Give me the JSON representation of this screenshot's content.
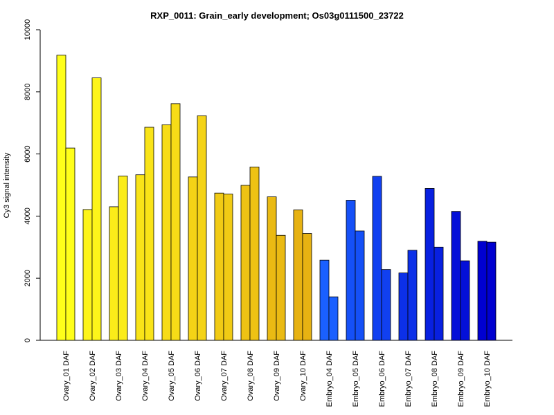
{
  "chart_data": {
    "type": "bar",
    "title": "RXP_0011: Grain_early development; Os03g0111500_23722",
    "xlabel": "",
    "ylabel": "Cy3 signal intensity",
    "ylim": [
      0,
      10000
    ],
    "yticks": [
      0,
      2000,
      4000,
      6000,
      8000,
      10000
    ],
    "grid": false,
    "bars_per_category": 2,
    "categories": [
      "Ovary_01 DAF",
      "Ovary_02 DAF",
      "Ovary_03 DAF",
      "Ovary_04 DAF",
      "Ovary_05 DAF",
      "Ovary_06 DAF",
      "Ovary_07 DAF",
      "Ovary_08 DAF",
      "Ovary_09 DAF",
      "Ovary_10 DAF",
      "Embryo_04 DAF",
      "Embryo_05 DAF",
      "Embryo_06 DAF",
      "Embryo_07 DAF",
      "Embryo_08 DAF",
      "Embryo_09 DAF",
      "Embryo_10 DAF"
    ],
    "values": [
      [
        9180,
        6190
      ],
      [
        4210,
        8450
      ],
      [
        4300,
        5290
      ],
      [
        5330,
        6860
      ],
      [
        6940,
        7620
      ],
      [
        5260,
        7230
      ],
      [
        4740,
        4710
      ],
      [
        4990,
        5580
      ],
      [
        4620,
        3380
      ],
      [
        4200,
        3440
      ],
      [
        2580,
        1400
      ],
      [
        4510,
        3520
      ],
      [
        5280,
        2280
      ],
      [
        2170,
        2900
      ],
      [
        4890,
        3000
      ],
      [
        4150,
        2560
      ],
      [
        3190,
        3160
      ]
    ],
    "colors": [
      "#FFFF1A",
      "#FDF41A",
      "#FBEC19",
      "#F9E418",
      "#F7DC17",
      "#F4D316",
      "#F1CB15",
      "#EEC214",
      "#EABA13",
      "#E7B212",
      "#1A60FF",
      "#1550F7",
      "#1140F0",
      "#0C30E8",
      "#0820E0",
      "#0410D8",
      "#0000D0"
    ]
  }
}
